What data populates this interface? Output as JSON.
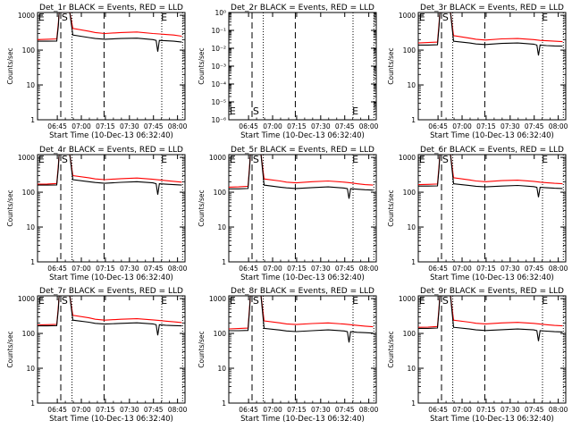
{
  "chart_data": [
    {
      "type": "line",
      "title": "Det_1r BLACK = Events, RED = LLD",
      "ylabel": "Counts/sec",
      "xlabel": "Start Time (10-Dec-13 06:32:40)",
      "x_ticks": [
        "06:45",
        "07:00",
        "07:15",
        "07:30",
        "07:45",
        "08:00"
      ],
      "y_ticks": [
        "1",
        "10",
        "100",
        "1000"
      ],
      "ylim": [
        1,
        1200
      ],
      "y_scale": "log",
      "markers": [
        "E",
        "S",
        "E"
      ],
      "series": [
        {
          "color": "#ff0000",
          "t": [
            0,
            6,
            12,
            13,
            13.5,
            20,
            22,
            32,
            36,
            42,
            52,
            62,
            72,
            76,
            80,
            85,
            90
          ],
          "values": [
            200,
            205,
            210,
            600,
            1300,
            1300,
            420,
            350,
            320,
            300,
            320,
            330,
            300,
            290,
            280,
            270,
            250
          ]
        },
        {
          "color": "#000000",
          "t": [
            0,
            6,
            12,
            13,
            13.5,
            20,
            22,
            32,
            36,
            42,
            52,
            62,
            72,
            74,
            75,
            76,
            80,
            85,
            90
          ],
          "values": [
            180,
            180,
            182,
            500,
            1300,
            1300,
            270,
            230,
            215,
            205,
            215,
            220,
            200,
            190,
            90,
            190,
            185,
            180,
            170
          ]
        }
      ]
    },
    {
      "type": "line",
      "title": "Det_2r BLACK = Events, RED = LLD",
      "ylabel": "Counts/sec",
      "xlabel": "Start Time (10-Dec-13 06:32:40)",
      "x_ticks": [
        "06:45",
        "07:00",
        "07:15",
        "07:30",
        "07:45",
        "08:00"
      ],
      "y_ticks": [
        "10⁻⁶",
        "10⁻⁵",
        "10⁻⁴",
        "10⁻³",
        "10⁻²",
        "10⁻¹",
        "10⁰"
      ],
      "ylim": [
        1e-06,
        1
      ],
      "y_scale": "log",
      "markers": [
        "E",
        "S",
        "E"
      ],
      "series": []
    },
    {
      "type": "line",
      "title": "Det_3r BLACK = Events, RED = LLD",
      "ylabel": "Counts/sec",
      "xlabel": "Start Time (10-Dec-13 06:32:40)",
      "x_ticks": [
        "06:45",
        "07:00",
        "07:15",
        "07:30",
        "07:45",
        "08:00"
      ],
      "y_ticks": [
        "1",
        "10",
        "100",
        "1000"
      ],
      "ylim": [
        1,
        1200
      ],
      "y_scale": "log",
      "markers": [
        "E",
        "S",
        "E"
      ],
      "series": [
        {
          "color": "#ff0000",
          "t": [
            0,
            6,
            12,
            13,
            13.5,
            20,
            22,
            32,
            36,
            42,
            52,
            62,
            72,
            76,
            80,
            85,
            90
          ],
          "values": [
            160,
            165,
            170,
            600,
            1300,
            1300,
            260,
            220,
            205,
            195,
            210,
            215,
            200,
            190,
            185,
            180,
            175
          ]
        },
        {
          "color": "#000000",
          "t": [
            0,
            6,
            12,
            13,
            13.5,
            20,
            22,
            32,
            36,
            42,
            52,
            62,
            72,
            74,
            75,
            76,
            80,
            85,
            90
          ],
          "values": [
            140,
            140,
            142,
            500,
            1300,
            1300,
            180,
            160,
            150,
            145,
            155,
            160,
            148,
            140,
            70,
            140,
            135,
            132,
            130
          ]
        }
      ]
    },
    {
      "type": "line",
      "title": "Det_4r BLACK = Events, RED = LLD",
      "ylabel": "Counts/sec",
      "xlabel": "Start Time (10-Dec-13 06:32:40)",
      "x_ticks": [
        "06:45",
        "07:00",
        "07:15",
        "07:30",
        "07:45",
        "08:00"
      ],
      "y_ticks": [
        "1",
        "10",
        "100",
        "1000"
      ],
      "ylim": [
        1,
        1200
      ],
      "y_scale": "log",
      "markers": [
        "E",
        "S",
        "E"
      ],
      "series": [
        {
          "color": "#ff0000",
          "t": [
            0,
            6,
            12,
            13,
            13.5,
            20,
            22,
            32,
            36,
            42,
            52,
            62,
            72,
            76,
            80,
            85,
            90
          ],
          "values": [
            170,
            172,
            178,
            600,
            1300,
            1300,
            300,
            260,
            240,
            230,
            245,
            255,
            235,
            225,
            215,
            205,
            195
          ]
        },
        {
          "color": "#000000",
          "t": [
            0,
            6,
            12,
            13,
            13.5,
            20,
            22,
            32,
            36,
            42,
            52,
            62,
            72,
            74,
            75,
            76,
            80,
            85,
            90
          ],
          "values": [
            160,
            160,
            162,
            500,
            1300,
            1300,
            230,
            200,
            190,
            180,
            192,
            200,
            185,
            175,
            85,
            175,
            170,
            165,
            160
          ]
        }
      ]
    },
    {
      "type": "line",
      "title": "Det_5r BLACK = Events, RED = LLD",
      "ylabel": "Counts/sec",
      "xlabel": "Start Time (10-Dec-13 06:32:40)",
      "x_ticks": [
        "06:45",
        "07:00",
        "07:15",
        "07:30",
        "07:45",
        "08:00"
      ],
      "y_ticks": [
        "1",
        "10",
        "100",
        "1000"
      ],
      "ylim": [
        1,
        1200
      ],
      "y_scale": "log",
      "markers": [
        "E",
        "S",
        "E"
      ],
      "series": [
        {
          "color": "#ff0000",
          "t": [
            0,
            6,
            12,
            13,
            13.5,
            20,
            22,
            32,
            36,
            42,
            52,
            62,
            72,
            76,
            80,
            85,
            90
          ],
          "values": [
            140,
            142,
            148,
            600,
            1300,
            1300,
            240,
            210,
            195,
            185,
            200,
            210,
            195,
            185,
            175,
            165,
            160
          ]
        },
        {
          "color": "#000000",
          "t": [
            0,
            6,
            12,
            13,
            13.5,
            20,
            22,
            32,
            36,
            42,
            52,
            62,
            72,
            74,
            75,
            76,
            80,
            85,
            90
          ],
          "values": [
            125,
            125,
            128,
            500,
            1300,
            1300,
            160,
            140,
            133,
            128,
            136,
            142,
            132,
            126,
            65,
            126,
            122,
            118,
            115
          ]
        }
      ]
    },
    {
      "type": "line",
      "title": "Det_6r BLACK = Events, RED = LLD",
      "ylabel": "Counts/sec",
      "xlabel": "Start Time (10-Dec-13 06:32:40)",
      "x_ticks": [
        "06:45",
        "07:00",
        "07:15",
        "07:30",
        "07:45",
        "08:00"
      ],
      "y_ticks": [
        "1",
        "10",
        "100",
        "1000"
      ],
      "ylim": [
        1,
        1200
      ],
      "y_scale": "log",
      "markers": [
        "E",
        "S",
        "E"
      ],
      "series": [
        {
          "color": "#ff0000",
          "t": [
            0,
            6,
            12,
            13,
            13.5,
            20,
            22,
            32,
            36,
            42,
            52,
            62,
            72,
            76,
            80,
            85,
            90
          ],
          "values": [
            165,
            168,
            172,
            600,
            1300,
            1300,
            260,
            225,
            210,
            200,
            215,
            222,
            205,
            195,
            188,
            180,
            175
          ]
        },
        {
          "color": "#000000",
          "t": [
            0,
            6,
            12,
            13,
            13.5,
            20,
            22,
            32,
            36,
            42,
            52,
            62,
            72,
            74,
            75,
            76,
            80,
            85,
            90
          ],
          "values": [
            150,
            150,
            152,
            500,
            1300,
            1300,
            175,
            155,
            148,
            142,
            150,
            156,
            145,
            138,
            72,
            138,
            134,
            130,
            128
          ]
        }
      ]
    },
    {
      "type": "line",
      "title": "Det_7r BLACK = Events, RED = LLD",
      "ylabel": "Counts/sec",
      "xlabel": "Start Time (10-Dec-13 06:32:40)",
      "x_ticks": [
        "06:45",
        "07:00",
        "07:15",
        "07:30",
        "07:45",
        "08:00"
      ],
      "y_ticks": [
        "1",
        "10",
        "100",
        "1000"
      ],
      "ylim": [
        1,
        1200
      ],
      "y_scale": "log",
      "markers": [
        "E",
        "S",
        "E"
      ],
      "series": [
        {
          "color": "#ff0000",
          "t": [
            0,
            6,
            12,
            13,
            13.5,
            20,
            22,
            32,
            36,
            42,
            52,
            62,
            72,
            76,
            80,
            85,
            90
          ],
          "values": [
            175,
            178,
            182,
            600,
            1300,
            1300,
            330,
            280,
            255,
            240,
            255,
            265,
            245,
            235,
            225,
            215,
            205
          ]
        },
        {
          "color": "#000000",
          "t": [
            0,
            6,
            12,
            13,
            13.5,
            20,
            22,
            32,
            36,
            42,
            52,
            62,
            72,
            74,
            75,
            76,
            80,
            85,
            90
          ],
          "values": [
            165,
            165,
            168,
            500,
            1300,
            1300,
            240,
            210,
            195,
            185,
            195,
            202,
            188,
            178,
            88,
            178,
            172,
            168,
            165
          ]
        }
      ]
    },
    {
      "type": "line",
      "title": "Det_8r BLACK = Events, RED = LLD",
      "ylabel": "Counts/sec",
      "xlabel": "Start Time (10-Dec-13 06:32:40)",
      "x_ticks": [
        "06:45",
        "07:00",
        "07:15",
        "07:30",
        "07:45",
        "08:00"
      ],
      "y_ticks": [
        "1",
        "10",
        "100",
        "1000"
      ],
      "ylim": [
        1,
        1200
      ],
      "y_scale": "log",
      "markers": [
        "E",
        "S",
        "E"
      ],
      "series": [
        {
          "color": "#ff0000",
          "t": [
            0,
            6,
            12,
            13,
            13.5,
            20,
            22,
            32,
            36,
            42,
            52,
            62,
            72,
            76,
            80,
            85,
            90
          ],
          "values": [
            135,
            138,
            142,
            600,
            1300,
            1300,
            230,
            200,
            188,
            180,
            192,
            200,
            186,
            178,
            170,
            162,
            155
          ]
        },
        {
          "color": "#000000",
          "t": [
            0,
            6,
            12,
            13,
            13.5,
            20,
            22,
            32,
            36,
            42,
            52,
            62,
            72,
            74,
            75,
            76,
            80,
            85,
            90
          ],
          "values": [
            120,
            120,
            122,
            500,
            1300,
            1300,
            140,
            125,
            118,
            113,
            120,
            126,
            118,
            112,
            55,
            112,
            108,
            105,
            102
          ]
        }
      ]
    },
    {
      "type": "line",
      "title": "Det_9r BLACK = Events, RED = LLD",
      "ylabel": "Counts/sec",
      "xlabel": "Start Time (10-Dec-13 06:32:40)",
      "x_ticks": [
        "06:45",
        "07:00",
        "07:15",
        "07:30",
        "07:45",
        "08:00"
      ],
      "y_ticks": [
        "1",
        "10",
        "100",
        "1000"
      ],
      "ylim": [
        1,
        1200
      ],
      "y_scale": "log",
      "markers": [
        "E",
        "S",
        "E"
      ],
      "series": [
        {
          "color": "#ff0000",
          "t": [
            0,
            6,
            12,
            13,
            13.5,
            20,
            22,
            32,
            36,
            42,
            52,
            62,
            72,
            76,
            80,
            85,
            90
          ],
          "values": [
            150,
            152,
            158,
            600,
            1300,
            1300,
            240,
            210,
            196,
            188,
            200,
            208,
            194,
            186,
            178,
            170,
            165
          ]
        },
        {
          "color": "#000000",
          "t": [
            0,
            6,
            12,
            13,
            13.5,
            20,
            22,
            32,
            36,
            42,
            52,
            62,
            72,
            74,
            75,
            76,
            80,
            85,
            90
          ],
          "values": [
            140,
            140,
            143,
            500,
            1300,
            1300,
            150,
            134,
            126,
            121,
            128,
            134,
            126,
            120,
            60,
            120,
            116,
            112,
            110
          ]
        }
      ]
    }
  ]
}
